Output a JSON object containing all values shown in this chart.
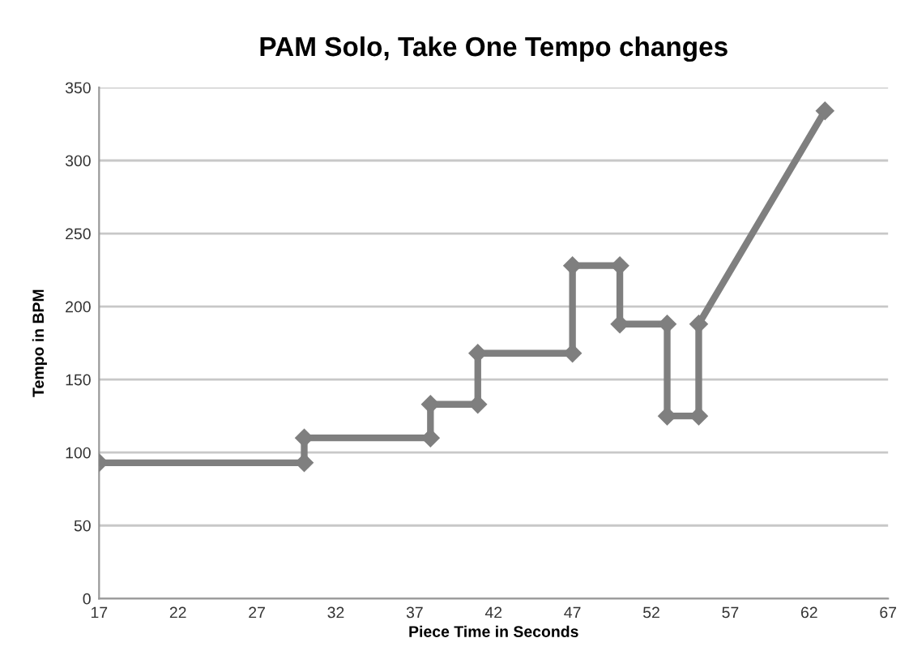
{
  "chart_data": {
    "type": "line",
    "title": "PAM Solo, Take One Tempo changes",
    "xlabel": "Piece Time in Seconds",
    "ylabel": "Tempo in BPM",
    "series": [
      {
        "color": "#7f7f7f",
        "x": [
          17,
          30,
          30,
          38,
          38,
          41,
          41,
          47,
          47,
          50,
          50,
          53,
          53,
          55,
          55,
          63
        ],
        "values": [
          93,
          93,
          110,
          110,
          133,
          133,
          168,
          168,
          228,
          228,
          188,
          188,
          125,
          125,
          188,
          334
        ]
      }
    ],
    "xlim": [
      17,
      67
    ],
    "xticks": [
      17,
      22,
      27,
      32,
      37,
      42,
      47,
      52,
      57,
      62,
      67
    ],
    "ylim": [
      0,
      350
    ],
    "yticks": [
      0,
      50,
      100,
      150,
      200,
      250,
      300,
      350
    ],
    "grid": "y",
    "marker": "diamond",
    "line_style": "solid"
  }
}
